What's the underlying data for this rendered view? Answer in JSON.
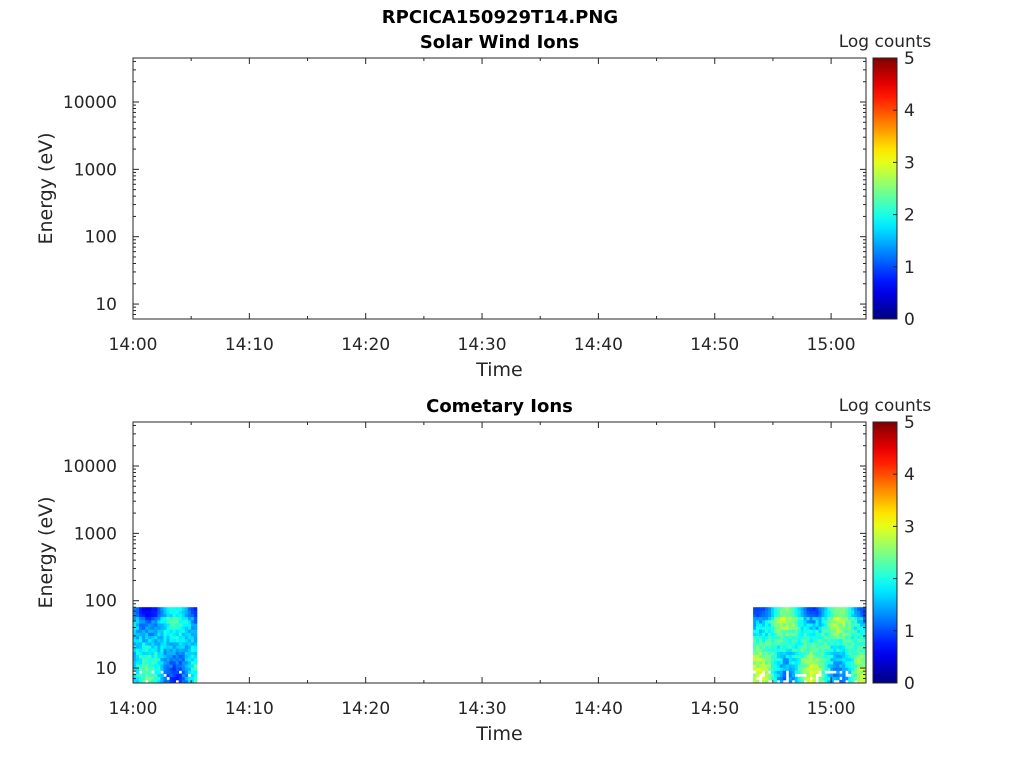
{
  "title": "RPCICA150929T14.PNG",
  "colors": {
    "axis": "#262626",
    "background": "#ffffff",
    "colormap": "jet"
  },
  "chart_data": [
    {
      "type": "heatmap",
      "title": "Solar Wind Ions",
      "xlabel": "Time",
      "ylabel": "Energy (eV)",
      "yscale": "log",
      "ylim": [
        6,
        45000
      ],
      "xlim": [
        "14:00",
        "15:03"
      ],
      "xticks": [
        "14:00",
        "14:10",
        "14:20",
        "14:30",
        "14:40",
        "14:50",
        "15:00"
      ],
      "yticks": [
        "10",
        "100",
        "1000",
        "10000"
      ],
      "colorbar": {
        "label": "Log counts",
        "range": [
          0,
          5
        ],
        "ticks": [
          "0",
          "1",
          "2",
          "3",
          "4",
          "5"
        ]
      },
      "data_blocks": []
    },
    {
      "type": "heatmap",
      "title": "Cometary Ions",
      "xlabel": "Time",
      "ylabel": "Energy (eV)",
      "yscale": "log",
      "ylim": [
        6,
        45000
      ],
      "xlim": [
        "14:00",
        "15:03"
      ],
      "xticks": [
        "14:00",
        "14:10",
        "14:20",
        "14:30",
        "14:40",
        "14:50",
        "15:00"
      ],
      "yticks": [
        "10",
        "100",
        "1000",
        "10000"
      ],
      "colorbar": {
        "label": "Log counts",
        "range": [
          0,
          5
        ],
        "ticks": [
          "0",
          "1",
          "2",
          "3",
          "4",
          "5"
        ]
      },
      "data_blocks": [
        {
          "t_start": "14:00",
          "t_end": "14:05.5",
          "e_min": 6,
          "e_max": 80,
          "log_counts_min": 0.5,
          "log_counts_max": 2.6
        },
        {
          "t_start": "14:53.3",
          "t_end": "15:03",
          "e_min": 6,
          "e_max": 80,
          "log_counts_min": 0.8,
          "log_counts_max": 3.2
        }
      ]
    }
  ]
}
